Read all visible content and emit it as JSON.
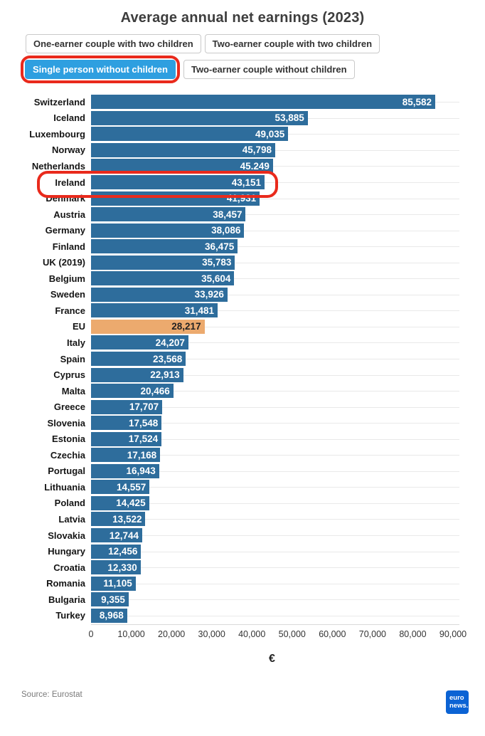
{
  "title": "Average annual net earnings (2023)",
  "tabs": [
    {
      "label": "One-earner couple with two children",
      "active": false
    },
    {
      "label": "Two-earner couple with two children",
      "active": false
    },
    {
      "label": "Single person without children",
      "active": true,
      "annotated": true
    },
    {
      "label": "Two-earner couple without children",
      "active": false
    }
  ],
  "chart_data": {
    "type": "bar",
    "orientation": "horizontal",
    "title": "Average annual net earnings (2023)",
    "xlabel": "€",
    "xlim": [
      0,
      90000
    ],
    "x_ticks": [
      0,
      10000,
      20000,
      30000,
      40000,
      50000,
      60000,
      70000,
      80000,
      90000
    ],
    "x_tick_labels": [
      "0",
      "10,000",
      "20,000",
      "30,000",
      "40,000",
      "50,000",
      "60,000",
      "70,000",
      "80,000",
      "90,000"
    ],
    "grid": "horizontal-light",
    "bar_color": "#2e6d9c",
    "accent_bar_color": "#ecaa6e",
    "annotation_circle_color": "#e92a1c",
    "rows": [
      {
        "label": "Switzerland",
        "value": 85582,
        "display": "85,582"
      },
      {
        "label": "Iceland",
        "value": 53885,
        "display": "53,885"
      },
      {
        "label": "Luxembourg",
        "value": 49035,
        "display": "49,035"
      },
      {
        "label": "Norway",
        "value": 45798,
        "display": "45,798"
      },
      {
        "label": "Netherlands",
        "value": 45249,
        "display": "45.249"
      },
      {
        "label": "Ireland",
        "value": 43151,
        "display": "43,151",
        "annotated": true
      },
      {
        "label": "Denmark",
        "value": 41931,
        "display": "41,931"
      },
      {
        "label": "Austria",
        "value": 38457,
        "display": "38,457"
      },
      {
        "label": "Germany",
        "value": 38086,
        "display": "38,086"
      },
      {
        "label": "Finland",
        "value": 36475,
        "display": "36,475"
      },
      {
        "label": "UK (2019)",
        "value": 35783,
        "display": "35,783"
      },
      {
        "label": "Belgium",
        "value": 35604,
        "display": "35,604"
      },
      {
        "label": "Sweden",
        "value": 33926,
        "display": "33,926"
      },
      {
        "label": "France",
        "value": 31481,
        "display": "31,481"
      },
      {
        "label": "EU",
        "value": 28217,
        "display": "28,217",
        "accent": true
      },
      {
        "label": "Italy",
        "value": 24207,
        "display": "24,207"
      },
      {
        "label": "Spain",
        "value": 23568,
        "display": "23,568"
      },
      {
        "label": "Cyprus",
        "value": 22913,
        "display": "22,913"
      },
      {
        "label": "Malta",
        "value": 20466,
        "display": "20,466"
      },
      {
        "label": "Greece",
        "value": 17707,
        "display": "17,707"
      },
      {
        "label": "Slovenia",
        "value": 17548,
        "display": "17,548"
      },
      {
        "label": "Estonia",
        "value": 17524,
        "display": "17,524"
      },
      {
        "label": "Czechia",
        "value": 17168,
        "display": "17,168"
      },
      {
        "label": "Portugal",
        "value": 16943,
        "display": "16,943"
      },
      {
        "label": "Lithuania",
        "value": 14557,
        "display": "14,557"
      },
      {
        "label": "Poland",
        "value": 14425,
        "display": "14,425"
      },
      {
        "label": "Latvia",
        "value": 13522,
        "display": "13,522"
      },
      {
        "label": "Slovakia",
        "value": 12744,
        "display": "12,744"
      },
      {
        "label": "Hungary",
        "value": 12456,
        "display": "12,456"
      },
      {
        "label": "Croatia",
        "value": 12330,
        "display": "12,330"
      },
      {
        "label": "Romania",
        "value": 11105,
        "display": "11,105"
      },
      {
        "label": "Bulgaria",
        "value": 9355,
        "display": "9,355"
      },
      {
        "label": "Turkey",
        "value": 8968,
        "display": "8,968"
      }
    ]
  },
  "source": "Source: Eurostat",
  "logo": {
    "line1": "euro",
    "line2": "news."
  }
}
